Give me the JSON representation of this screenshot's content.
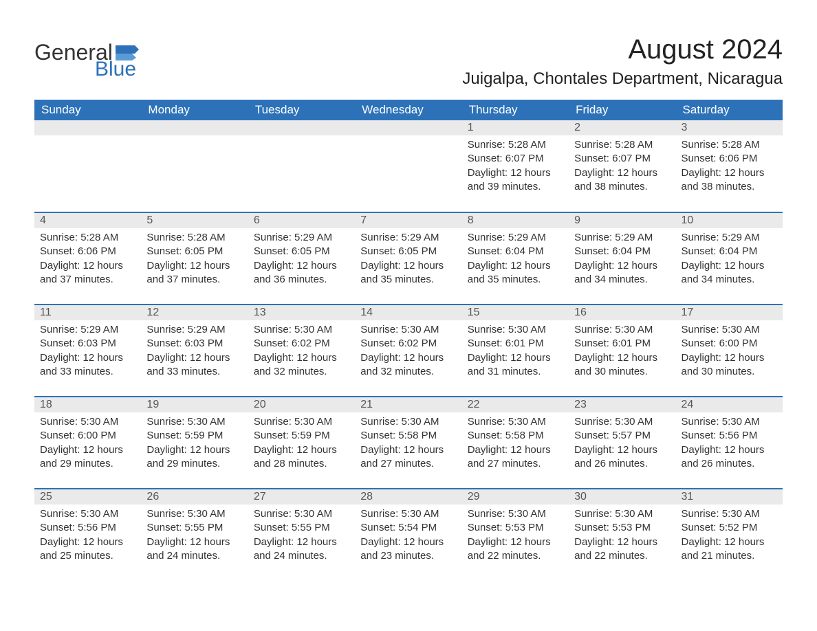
{
  "logo": {
    "text_general": "General",
    "text_blue": "Blue"
  },
  "header": {
    "month_year": "August 2024",
    "location": "Juigalpa, Chontales Department, Nicaragua"
  },
  "colors": {
    "accent": "#2d72b8",
    "header_text": "#ffffff",
    "day_num_bg": "#eaeaea",
    "body_text": "#333333",
    "background": "#ffffff"
  },
  "calendar": {
    "columns": [
      "Sunday",
      "Monday",
      "Tuesday",
      "Wednesday",
      "Thursday",
      "Friday",
      "Saturday"
    ],
    "weeks": [
      [
        null,
        null,
        null,
        null,
        {
          "n": "1",
          "sunrise": "Sunrise: 5:28 AM",
          "sunset": "Sunset: 6:07 PM",
          "daylight": "Daylight: 12 hours and 39 minutes."
        },
        {
          "n": "2",
          "sunrise": "Sunrise: 5:28 AM",
          "sunset": "Sunset: 6:07 PM",
          "daylight": "Daylight: 12 hours and 38 minutes."
        },
        {
          "n": "3",
          "sunrise": "Sunrise: 5:28 AM",
          "sunset": "Sunset: 6:06 PM",
          "daylight": "Daylight: 12 hours and 38 minutes."
        }
      ],
      [
        {
          "n": "4",
          "sunrise": "Sunrise: 5:28 AM",
          "sunset": "Sunset: 6:06 PM",
          "daylight": "Daylight: 12 hours and 37 minutes."
        },
        {
          "n": "5",
          "sunrise": "Sunrise: 5:28 AM",
          "sunset": "Sunset: 6:05 PM",
          "daylight": "Daylight: 12 hours and 37 minutes."
        },
        {
          "n": "6",
          "sunrise": "Sunrise: 5:29 AM",
          "sunset": "Sunset: 6:05 PM",
          "daylight": "Daylight: 12 hours and 36 minutes."
        },
        {
          "n": "7",
          "sunrise": "Sunrise: 5:29 AM",
          "sunset": "Sunset: 6:05 PM",
          "daylight": "Daylight: 12 hours and 35 minutes."
        },
        {
          "n": "8",
          "sunrise": "Sunrise: 5:29 AM",
          "sunset": "Sunset: 6:04 PM",
          "daylight": "Daylight: 12 hours and 35 minutes."
        },
        {
          "n": "9",
          "sunrise": "Sunrise: 5:29 AM",
          "sunset": "Sunset: 6:04 PM",
          "daylight": "Daylight: 12 hours and 34 minutes."
        },
        {
          "n": "10",
          "sunrise": "Sunrise: 5:29 AM",
          "sunset": "Sunset: 6:04 PM",
          "daylight": "Daylight: 12 hours and 34 minutes."
        }
      ],
      [
        {
          "n": "11",
          "sunrise": "Sunrise: 5:29 AM",
          "sunset": "Sunset: 6:03 PM",
          "daylight": "Daylight: 12 hours and 33 minutes."
        },
        {
          "n": "12",
          "sunrise": "Sunrise: 5:29 AM",
          "sunset": "Sunset: 6:03 PM",
          "daylight": "Daylight: 12 hours and 33 minutes."
        },
        {
          "n": "13",
          "sunrise": "Sunrise: 5:30 AM",
          "sunset": "Sunset: 6:02 PM",
          "daylight": "Daylight: 12 hours and 32 minutes."
        },
        {
          "n": "14",
          "sunrise": "Sunrise: 5:30 AM",
          "sunset": "Sunset: 6:02 PM",
          "daylight": "Daylight: 12 hours and 32 minutes."
        },
        {
          "n": "15",
          "sunrise": "Sunrise: 5:30 AM",
          "sunset": "Sunset: 6:01 PM",
          "daylight": "Daylight: 12 hours and 31 minutes."
        },
        {
          "n": "16",
          "sunrise": "Sunrise: 5:30 AM",
          "sunset": "Sunset: 6:01 PM",
          "daylight": "Daylight: 12 hours and 30 minutes."
        },
        {
          "n": "17",
          "sunrise": "Sunrise: 5:30 AM",
          "sunset": "Sunset: 6:00 PM",
          "daylight": "Daylight: 12 hours and 30 minutes."
        }
      ],
      [
        {
          "n": "18",
          "sunrise": "Sunrise: 5:30 AM",
          "sunset": "Sunset: 6:00 PM",
          "daylight": "Daylight: 12 hours and 29 minutes."
        },
        {
          "n": "19",
          "sunrise": "Sunrise: 5:30 AM",
          "sunset": "Sunset: 5:59 PM",
          "daylight": "Daylight: 12 hours and 29 minutes."
        },
        {
          "n": "20",
          "sunrise": "Sunrise: 5:30 AM",
          "sunset": "Sunset: 5:59 PM",
          "daylight": "Daylight: 12 hours and 28 minutes."
        },
        {
          "n": "21",
          "sunrise": "Sunrise: 5:30 AM",
          "sunset": "Sunset: 5:58 PM",
          "daylight": "Daylight: 12 hours and 27 minutes."
        },
        {
          "n": "22",
          "sunrise": "Sunrise: 5:30 AM",
          "sunset": "Sunset: 5:58 PM",
          "daylight": "Daylight: 12 hours and 27 minutes."
        },
        {
          "n": "23",
          "sunrise": "Sunrise: 5:30 AM",
          "sunset": "Sunset: 5:57 PM",
          "daylight": "Daylight: 12 hours and 26 minutes."
        },
        {
          "n": "24",
          "sunrise": "Sunrise: 5:30 AM",
          "sunset": "Sunset: 5:56 PM",
          "daylight": "Daylight: 12 hours and 26 minutes."
        }
      ],
      [
        {
          "n": "25",
          "sunrise": "Sunrise: 5:30 AM",
          "sunset": "Sunset: 5:56 PM",
          "daylight": "Daylight: 12 hours and 25 minutes."
        },
        {
          "n": "26",
          "sunrise": "Sunrise: 5:30 AM",
          "sunset": "Sunset: 5:55 PM",
          "daylight": "Daylight: 12 hours and 24 minutes."
        },
        {
          "n": "27",
          "sunrise": "Sunrise: 5:30 AM",
          "sunset": "Sunset: 5:55 PM",
          "daylight": "Daylight: 12 hours and 24 minutes."
        },
        {
          "n": "28",
          "sunrise": "Sunrise: 5:30 AM",
          "sunset": "Sunset: 5:54 PM",
          "daylight": "Daylight: 12 hours and 23 minutes."
        },
        {
          "n": "29",
          "sunrise": "Sunrise: 5:30 AM",
          "sunset": "Sunset: 5:53 PM",
          "daylight": "Daylight: 12 hours and 22 minutes."
        },
        {
          "n": "30",
          "sunrise": "Sunrise: 5:30 AM",
          "sunset": "Sunset: 5:53 PM",
          "daylight": "Daylight: 12 hours and 22 minutes."
        },
        {
          "n": "31",
          "sunrise": "Sunrise: 5:30 AM",
          "sunset": "Sunset: 5:52 PM",
          "daylight": "Daylight: 12 hours and 21 minutes."
        }
      ]
    ]
  }
}
